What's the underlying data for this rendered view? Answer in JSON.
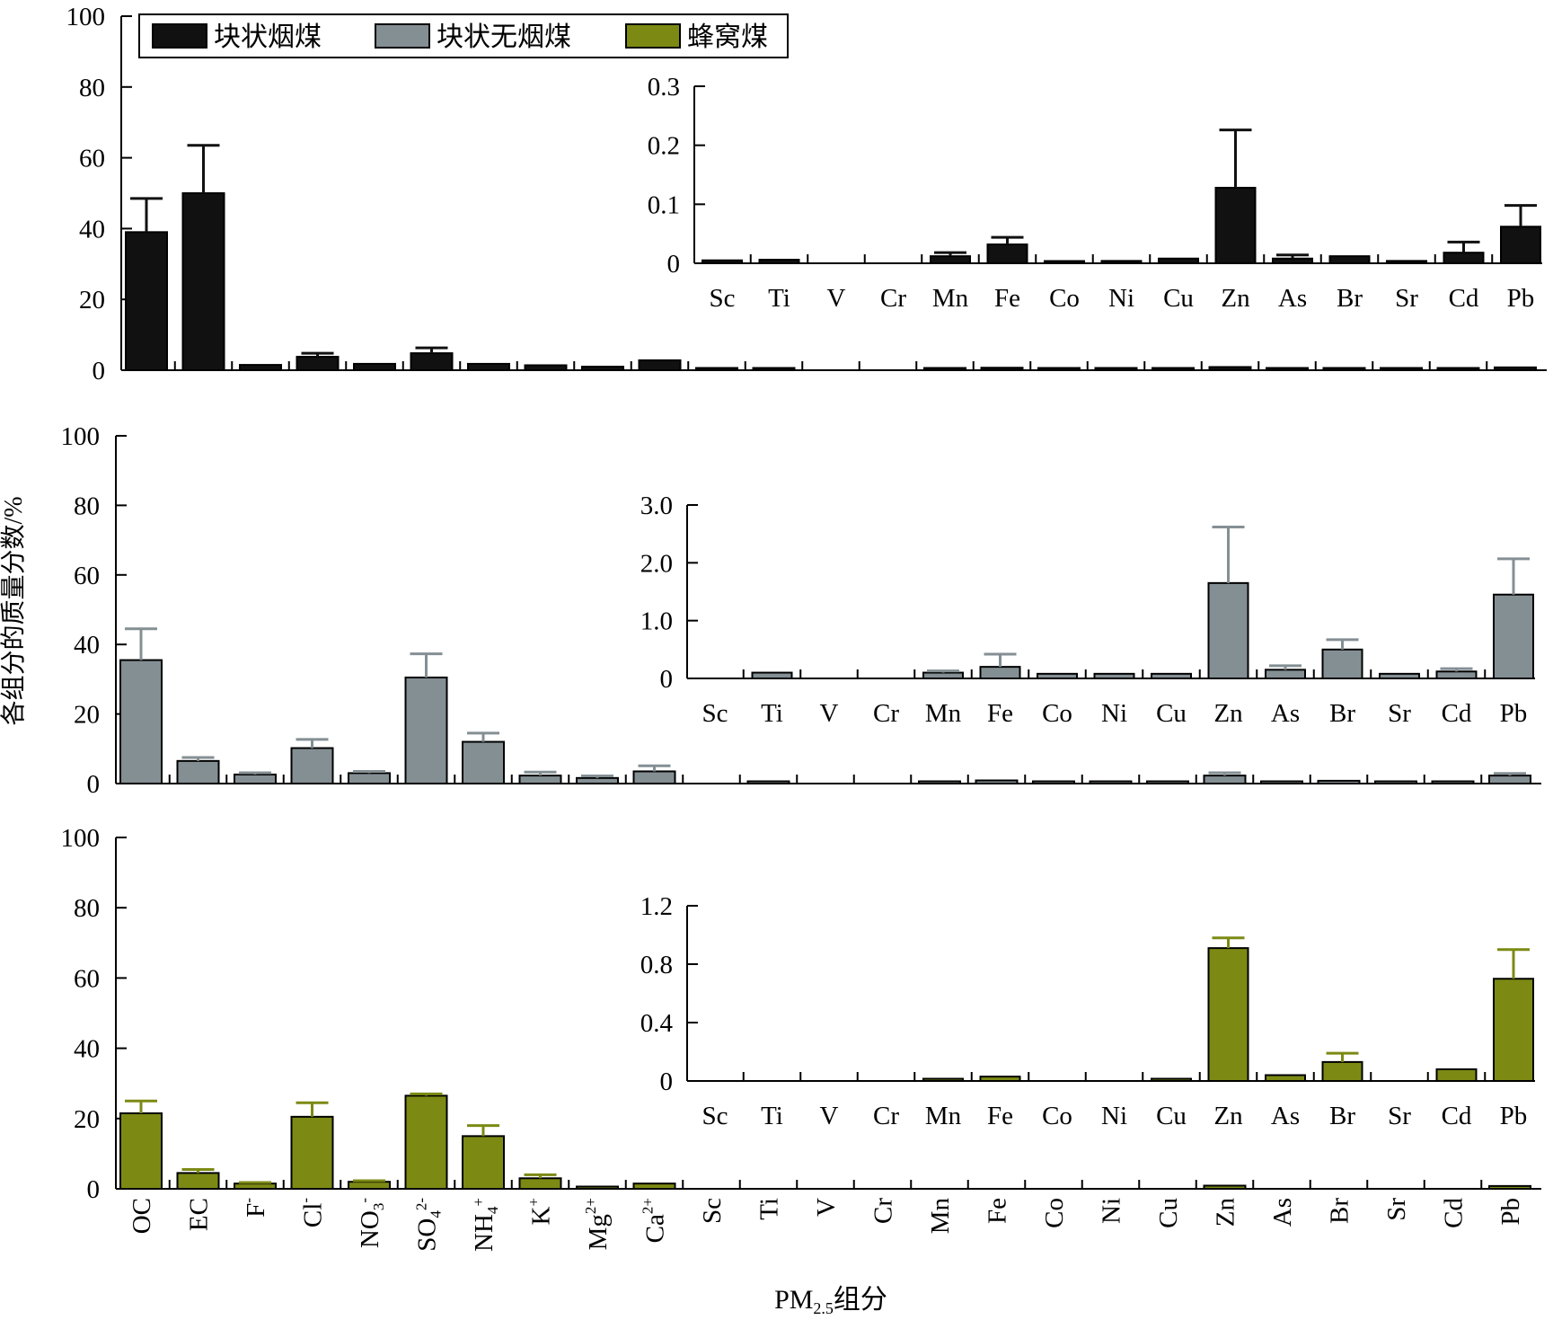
{
  "legend": [
    {
      "label": "块状烟煤",
      "color": "#111111"
    },
    {
      "label": "块状无烟煤",
      "color": "#848f94"
    },
    {
      "label": "蜂窝煤",
      "color": "#7c8a14"
    }
  ],
  "ylabel": "各组分的质量分数/%",
  "xlabel_main": "PM",
  "xlabel_sub": "2.5",
  "xlabel_suffix": "组分",
  "categories": [
    {
      "base": "OC",
      "sup": "",
      "sub": ""
    },
    {
      "base": "EC",
      "sup": "",
      "sub": ""
    },
    {
      "base": "F",
      "sup": "-",
      "sub": ""
    },
    {
      "base": "Cl",
      "sup": "-",
      "sub": ""
    },
    {
      "base": "NO",
      "sup": "-",
      "sub": "3"
    },
    {
      "base": "SO",
      "sup": "2-",
      "sub": "4"
    },
    {
      "base": "NH",
      "sup": "+",
      "sub": "4"
    },
    {
      "base": "K",
      "sup": "+",
      "sub": ""
    },
    {
      "base": "Mg",
      "sup": "2+",
      "sub": ""
    },
    {
      "base": "Ca",
      "sup": "2+",
      "sub": ""
    },
    {
      "base": "Sc",
      "sup": "",
      "sub": ""
    },
    {
      "base": "Ti",
      "sup": "",
      "sub": ""
    },
    {
      "base": "V",
      "sup": "",
      "sub": ""
    },
    {
      "base": "Cr",
      "sup": "",
      "sub": ""
    },
    {
      "base": "Mn",
      "sup": "",
      "sub": ""
    },
    {
      "base": "Fe",
      "sup": "",
      "sub": ""
    },
    {
      "base": "Co",
      "sup": "",
      "sub": ""
    },
    {
      "base": "Ni",
      "sup": "",
      "sub": ""
    },
    {
      "base": "Cu",
      "sup": "",
      "sub": ""
    },
    {
      "base": "Zn",
      "sup": "",
      "sub": ""
    },
    {
      "base": "As",
      "sup": "",
      "sub": ""
    },
    {
      "base": "Br",
      "sup": "",
      "sub": ""
    },
    {
      "base": "Sr",
      "sup": "",
      "sub": ""
    },
    {
      "base": "Cd",
      "sup": "",
      "sub": ""
    },
    {
      "base": "Pb",
      "sup": "",
      "sub": ""
    }
  ],
  "chart_data": [
    {
      "type": "bar",
      "series_name": "块状烟煤",
      "color": "#111111",
      "ylim": [
        0,
        100
      ],
      "yticks": [
        "0",
        "20",
        "40",
        "60",
        "80",
        "100"
      ],
      "values": [
        39.0,
        50.0,
        1.5,
        3.8,
        1.8,
        4.8,
        1.8,
        1.4,
        1.0,
        2.8,
        0.6,
        0.6,
        0.0,
        0.0,
        0.6,
        0.7,
        0.6,
        0.6,
        0.6,
        0.9,
        0.6,
        0.6,
        0.6,
        0.6,
        0.8
      ],
      "errors": [
        9.5,
        13.5,
        0,
        1.0,
        0,
        1.5,
        0,
        0,
        0,
        0,
        0,
        0,
        0,
        0,
        0,
        0,
        0,
        0,
        0,
        0,
        0,
        0,
        0,
        0,
        0
      ],
      "inset": {
        "categories": [
          "Sc",
          "Ti",
          "V",
          "Cr",
          "Mn",
          "Fe",
          "Co",
          "Ni",
          "Cu",
          "Zn",
          "As",
          "Br",
          "Sr",
          "Cd",
          "Pb"
        ],
        "ylim": [
          0,
          0.3
        ],
        "yticks": [
          "0",
          "0.1",
          "0.2",
          "0.3"
        ],
        "values": [
          0.005,
          0.006,
          0.0,
          0.0,
          0.012,
          0.032,
          0.002,
          0.004,
          0.008,
          0.128,
          0.008,
          0.012,
          0.004,
          0.018,
          0.062
        ],
        "errors": [
          0,
          0,
          0,
          0,
          0.006,
          0.012,
          0,
          0,
          0,
          0.098,
          0.006,
          0,
          0,
          0.018,
          0.036
        ]
      }
    },
    {
      "type": "bar",
      "series_name": "块状无烟煤",
      "color": "#848f94",
      "ylim": [
        0,
        100
      ],
      "yticks": [
        "0",
        "20",
        "40",
        "60",
        "80",
        "100"
      ],
      "values": [
        35.5,
        6.5,
        2.6,
        10.2,
        3.0,
        30.5,
        12.0,
        2.3,
        1.6,
        3.5,
        0.0,
        0.6,
        0.0,
        0.0,
        0.6,
        0.9,
        0.6,
        0.6,
        0.6,
        2.3,
        0.6,
        0.8,
        0.6,
        0.6,
        2.3
      ],
      "errors": [
        9.0,
        1.0,
        0.5,
        2.5,
        0.5,
        6.8,
        2.5,
        1.0,
        0.6,
        1.6,
        0,
        0,
        0,
        0,
        0,
        0,
        0,
        0,
        0,
        0.8,
        0,
        0,
        0,
        0,
        0.6
      ],
      "inset": {
        "categories": [
          "Sc",
          "Ti",
          "V",
          "Cr",
          "Mn",
          "Fe",
          "Co",
          "Ni",
          "Cu",
          "Zn",
          "As",
          "Br",
          "Sr",
          "Cd",
          "Pb"
        ],
        "ylim": [
          0,
          3.0
        ],
        "yticks": [
          "0",
          "1.0",
          "2.0",
          "3.0"
        ],
        "values": [
          0.0,
          0.1,
          0.0,
          0.0,
          0.1,
          0.2,
          0.08,
          0.08,
          0.08,
          1.65,
          0.15,
          0.5,
          0.08,
          0.12,
          1.45
        ],
        "errors": [
          0,
          0,
          0,
          0,
          0.03,
          0.22,
          0,
          0,
          0,
          0.97,
          0.07,
          0.17,
          0,
          0.05,
          0.62
        ]
      }
    },
    {
      "type": "bar",
      "series_name": "蜂窝煤",
      "color": "#7c8a14",
      "ylim": [
        0,
        100
      ],
      "yticks": [
        "0",
        "20",
        "40",
        "60",
        "80",
        "100"
      ],
      "values": [
        21.5,
        4.5,
        1.5,
        20.5,
        2.0,
        26.5,
        15.0,
        3.0,
        0.3,
        1.5,
        0.0,
        0.0,
        0.0,
        0.0,
        0.0,
        0.0,
        0.0,
        0.0,
        0.0,
        0.9,
        0.0,
        0.0,
        0.0,
        0.0,
        0.8
      ],
      "errors": [
        3.5,
        1.0,
        0.3,
        4.0,
        0.3,
        0.5,
        3.0,
        1.0,
        0,
        0,
        0,
        0,
        0,
        0,
        0,
        0,
        0,
        0,
        0,
        0,
        0,
        0,
        0,
        0,
        0
      ],
      "inset": {
        "categories": [
          "Sc",
          "Ti",
          "V",
          "Cr",
          "Mn",
          "Fe",
          "Co",
          "Ni",
          "Cu",
          "Zn",
          "As",
          "Br",
          "Sr",
          "Cd",
          "Pb"
        ],
        "ylim": [
          0,
          1.2
        ],
        "yticks": [
          "0",
          "0.4",
          "0.8",
          "1.2"
        ],
        "values": [
          0.0,
          0.0,
          0.0,
          0.0,
          0.01,
          0.03,
          0.0,
          0.0,
          0.01,
          0.91,
          0.04,
          0.13,
          0.0,
          0.08,
          0.7
        ],
        "errors": [
          0,
          0,
          0,
          0,
          0,
          0,
          0,
          0,
          0,
          0.07,
          0,
          0.06,
          0,
          0,
          0.2
        ]
      }
    }
  ]
}
